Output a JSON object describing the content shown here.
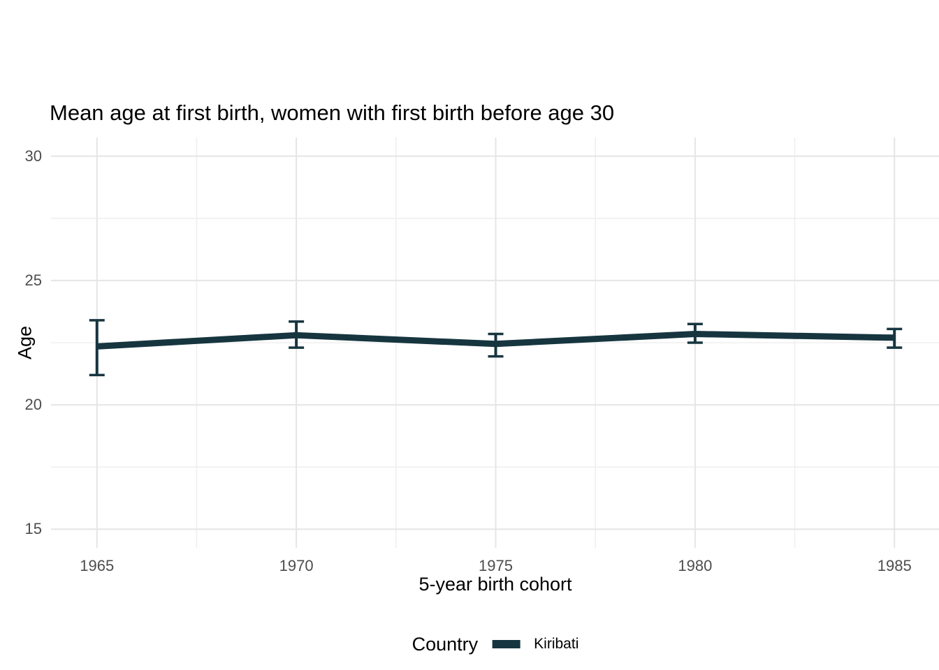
{
  "chart_data": {
    "type": "line",
    "title": "Mean age at first birth, women with first birth before age 30",
    "xlabel": "5-year birth cohort",
    "ylabel": "Age",
    "legend_title": "Country",
    "legend_position": "bottom",
    "grid": true,
    "x": [
      1965,
      1970,
      1975,
      1980,
      1985
    ],
    "x_tick_labels": [
      "1965",
      "1970",
      "1975",
      "1980",
      "1985"
    ],
    "y_ticks": [
      15,
      20,
      25,
      30
    ],
    "xlim": [
      1964,
      1986
    ],
    "ylim": [
      14.25,
      30.75
    ],
    "series": [
      {
        "name": "Kiribati",
        "color": "#16353f",
        "values": [
          22.35,
          22.8,
          22.45,
          22.85,
          22.7
        ],
        "ci_low": [
          21.2,
          22.3,
          21.95,
          22.5,
          22.3
        ],
        "ci_high": [
          23.4,
          23.35,
          22.85,
          23.25,
          23.05
        ]
      }
    ],
    "colors": {
      "grid_major": "#e5e5e5",
      "grid_minor": "#efefef",
      "tick_text": "#4d4d4d",
      "text": "#000000",
      "background": "#ffffff"
    }
  }
}
